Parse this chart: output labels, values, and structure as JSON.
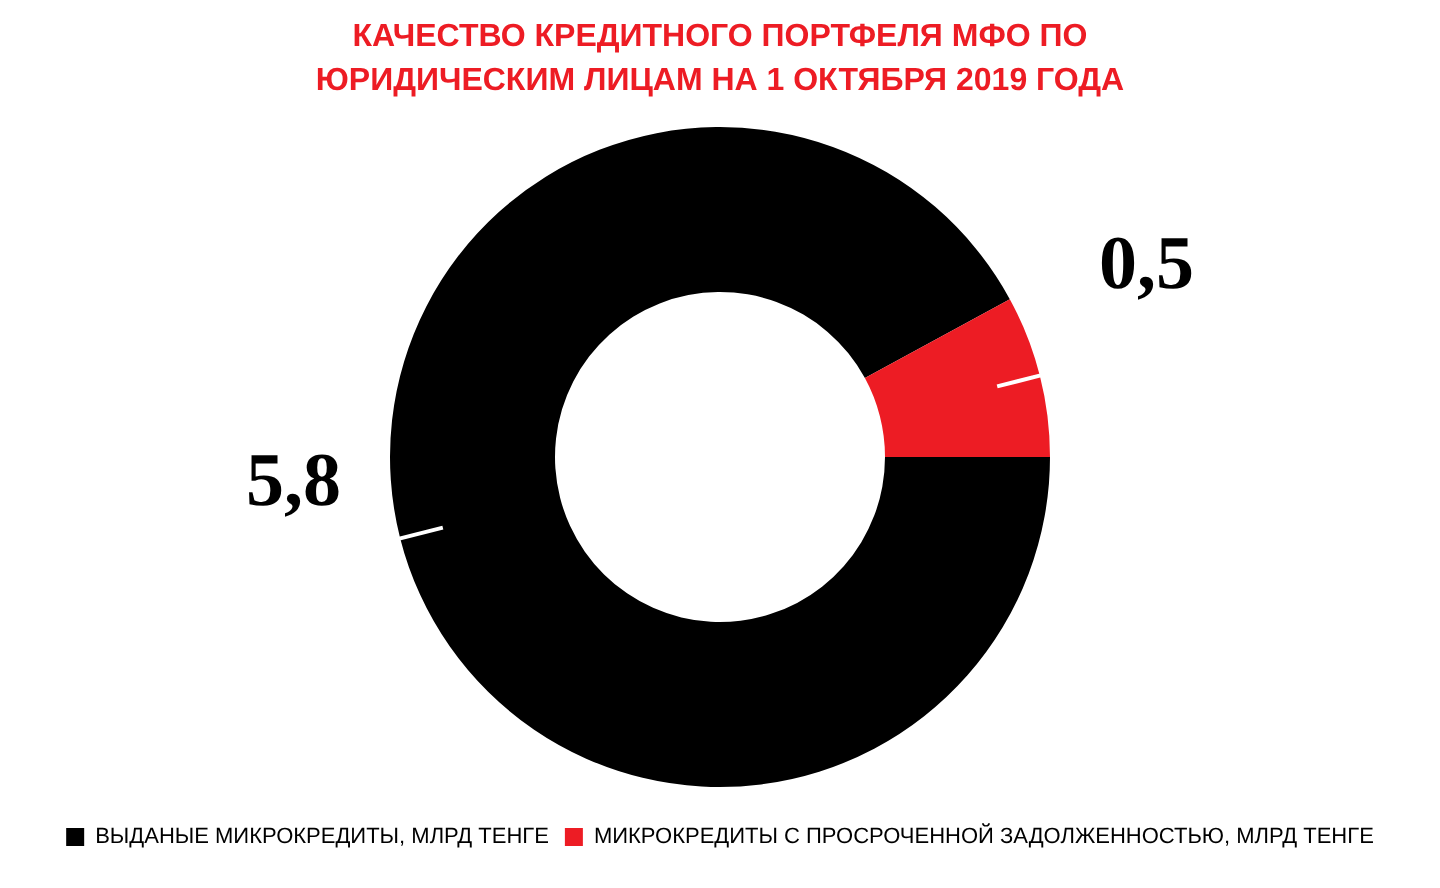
{
  "chart_data": {
    "type": "donut",
    "title": "КАЧЕСТВО КРЕДИТНОГО ПОРТФЕЛЯ МФО ПО ЮРИДИЧЕСКИМ ЛИЦАМ НА 1 ОКТЯБРЯ 2019 ГОДА",
    "categories": [
      "ВЫДАНЫЕ МИКРОКРЕДИТЫ, МЛРД ТЕНГЕ",
      "МИКРОКРЕДИТЫ С ПРОСРОЧЕННОЙ ЗАДОЛЖЕННОСТЬЮ, МЛРД ТЕНГЕ"
    ],
    "values": [
      5.8,
      0.5
    ],
    "colors": [
      "#000000",
      "#ed1c24"
    ],
    "value_labels": [
      "5,8",
      "0,5"
    ],
    "legend": "bottom"
  }
}
